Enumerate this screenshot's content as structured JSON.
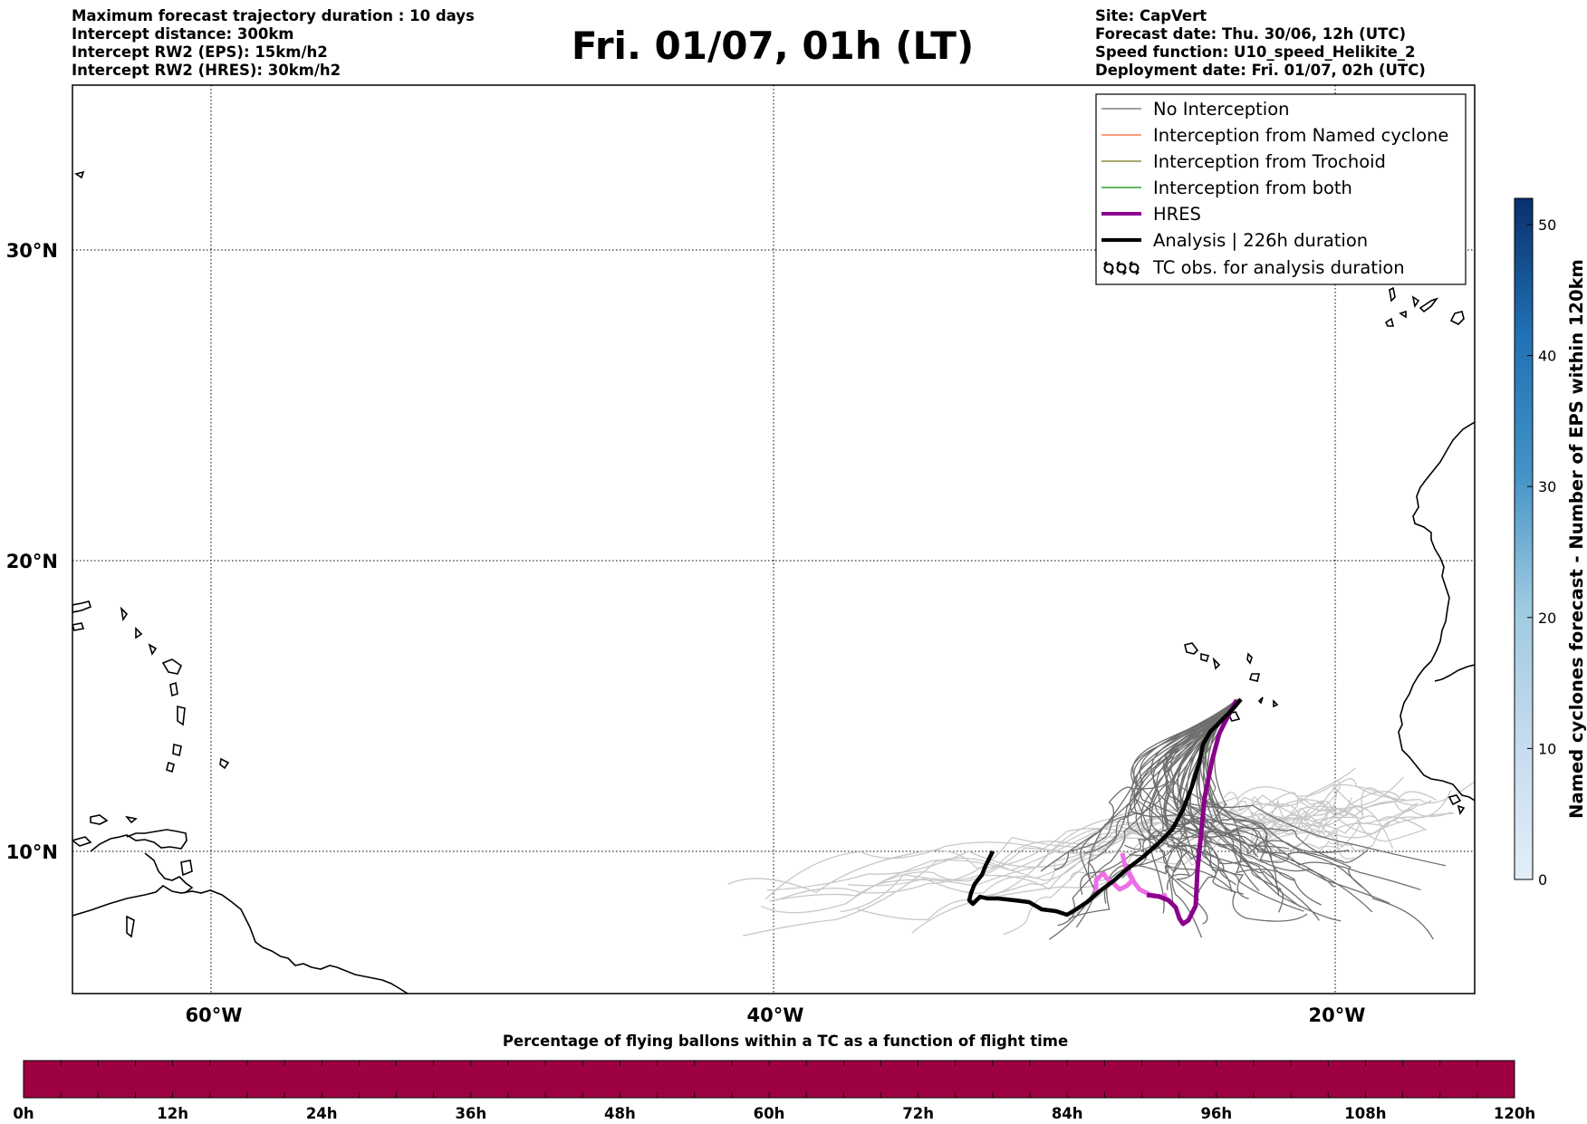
{
  "title": "Fri. 01/07, 01h (LT)",
  "info_left": [
    "Maximum forecast trajectory duration : 10 days",
    "Intercept distance: 300km",
    "Intercept RW2 (EPS):  15km/h2",
    "Intercept RW2 (HRES): 30km/h2"
  ],
  "info_right": [
    "Site: CapVert",
    "Forecast date: Thu. 30/06, 12h (UTC)",
    "Speed function: U10_speed_Helikite_2",
    "Deployment date: Fri. 01/07, 02h (UTC)"
  ],
  "map": {
    "lat_labels": [
      "30°N",
      "20°N",
      "10°N"
    ],
    "lon_labels": [
      "60°W",
      "40°W",
      "20°W"
    ]
  },
  "legend": [
    {
      "label": "No Interception",
      "color": "#808080",
      "icon": "line-thin"
    },
    {
      "label": "Interception from Named cyclone",
      "color": "#ff7f50",
      "icon": "line-thin"
    },
    {
      "label": "Interception from Trochoid",
      "color": "#8b8b3c",
      "icon": "line-thin"
    },
    {
      "label": "Interception from both",
      "color": "#2ca02c",
      "icon": "line-thin"
    },
    {
      "label": "HRES",
      "color": "#8b008b",
      "icon": "line-thick"
    },
    {
      "label": "Analysis | 226h duration",
      "color": "#000000",
      "icon": "line-thick"
    },
    {
      "label": "TC obs. for analysis duration",
      "color": "#000000",
      "icon": "cyclone-symbols"
    }
  ],
  "colorbar_right": {
    "label": "Named cyclones forecast - Number of EPS within 120km",
    "ticks": [
      "0",
      "10",
      "20",
      "30",
      "40",
      "50"
    ],
    "max": 52,
    "color_low": "#e3eef9",
    "color_high": "#08306b"
  },
  "colorbar_bottom": {
    "title": "Percentage of flying ballons within a TC as a function of flight time",
    "ticks": [
      "0h",
      "12h",
      "24h",
      "36h",
      "48h",
      "60h",
      "72h",
      "84h",
      "96h",
      "108h",
      "120h"
    ],
    "fill_color": "#9e0142"
  }
}
